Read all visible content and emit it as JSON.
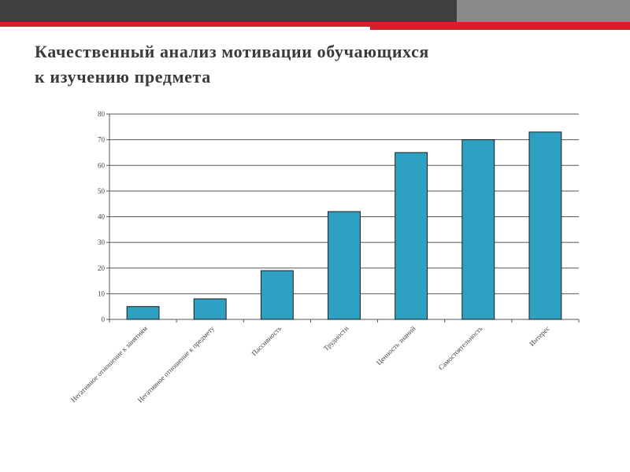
{
  "slide": {
    "title_line1": "Качественный анализ мотивации обучающихся",
    "title_line2": "к изучению предмета"
  },
  "colors": {
    "bar": "#2ea1c2",
    "bar_stroke": "#1c1c1c",
    "grid": "#555555",
    "header_dark": "#3f3f3f",
    "header_red": "#d4202a"
  },
  "chart_data": {
    "type": "bar",
    "categories": [
      "Негативное отношение к занятиям",
      "Негативное отношение к предмету",
      "Пассивность",
      "Трудности",
      "Ценность знаний",
      "Самостоятельность",
      "Интерес"
    ],
    "values": [
      5,
      8,
      19,
      42,
      65,
      70,
      73
    ],
    "yticks": [
      0,
      10,
      20,
      30,
      40,
      50,
      60,
      70,
      80
    ],
    "ylim": [
      0,
      80
    ],
    "grid": true,
    "legend": "none"
  }
}
